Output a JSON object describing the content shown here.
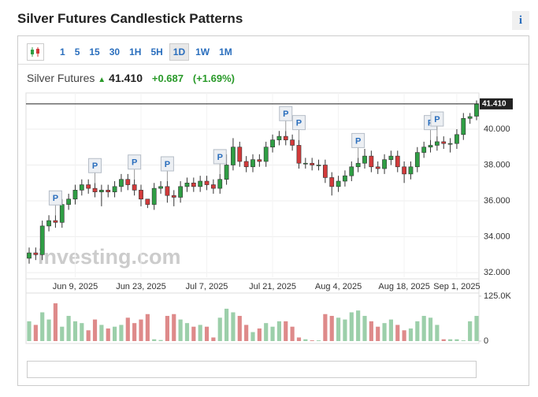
{
  "header": {
    "title": "Silver Futures Candlestick Patterns",
    "info": "i"
  },
  "toolbar": [
    "1",
    "5",
    "15",
    "30",
    "1H",
    "5H",
    "1D",
    "1W",
    "1M"
  ],
  "quote": {
    "name": "Silver Futures",
    "price": {
      "value": 41.41,
      "label": "41.410"
    },
    "change": {
      "value": 0.687,
      "label": "+0.687"
    },
    "change_pct": {
      "value": 1.69,
      "label": "(+1.69%)"
    }
  },
  "watermark": "investing.com",
  "chart_data": {
    "type": "candlestick",
    "categories": [
      null,
      null,
      null,
      null,
      null,
      null,
      null,
      "Jun 9, 2025",
      null,
      null,
      null,
      null,
      null,
      null,
      null,
      null,
      null,
      "Jun 23, 2025",
      null,
      null,
      null,
      null,
      null,
      null,
      null,
      null,
      null,
      "Jul 7, 2025",
      null,
      null,
      null,
      null,
      null,
      null,
      null,
      null,
      null,
      "Jul 21, 2025",
      null,
      null,
      null,
      null,
      null,
      null,
      null,
      null,
      null,
      "Aug 4, 2025",
      null,
      null,
      null,
      null,
      null,
      null,
      null,
      null,
      null,
      "Aug 18, 2025",
      null,
      null,
      null,
      null,
      null,
      null,
      null,
      "Sep 1, 2025",
      null,
      null,
      null
    ],
    "open": [
      32.8,
      33.1,
      33.0,
      34.6,
      34.9,
      34.8,
      35.8,
      36.1,
      36.6,
      36.9,
      36.7,
      36.5,
      36.6,
      36.5,
      36.8,
      37.2,
      36.9,
      36.6,
      36.1,
      35.8,
      36.7,
      36.8,
      36.3,
      36.2,
      36.8,
      37.0,
      36.8,
      37.1,
      36.9,
      36.7,
      37.2,
      38.0,
      39.0,
      38.2,
      37.9,
      38.3,
      38.2,
      39.0,
      39.4,
      39.6,
      39.4,
      39.1,
      38.1,
      38.1,
      38.0,
      38.0,
      37.3,
      36.8,
      37.1,
      37.4,
      37.9,
      38.1,
      38.5,
      37.9,
      37.8,
      38.3,
      38.5,
      37.9,
      37.5,
      37.9,
      38.7,
      39.0,
      39.1,
      39.3,
      39.2,
      39.2,
      39.7,
      40.6,
      40.723
    ],
    "high": [
      33.4,
      33.4,
      34.9,
      35.2,
      35.2,
      36.1,
      36.4,
      36.9,
      37.2,
      37.2,
      37.0,
      36.9,
      36.9,
      37.1,
      37.5,
      37.5,
      37.2,
      36.9,
      36.1,
      37.0,
      37.1,
      37.1,
      36.6,
      37.1,
      37.3,
      37.3,
      37.4,
      37.4,
      37.2,
      37.5,
      38.6,
      39.5,
      39.3,
      38.5,
      38.6,
      38.6,
      39.3,
      39.7,
      39.9,
      39.9,
      39.7,
      39.4,
      38.4,
      38.4,
      38.3,
      38.3,
      37.6,
      37.4,
      37.7,
      38.2,
      38.4,
      38.9,
      38.8,
      38.2,
      38.6,
      38.8,
      38.8,
      38.2,
      38.2,
      39.0,
      39.3,
      39.4,
      39.6,
      39.6,
      39.5,
      40.0,
      40.9,
      40.9,
      41.6
    ],
    "low": [
      32.5,
      32.7,
      32.7,
      34.3,
      34.5,
      34.5,
      35.5,
      35.8,
      36.3,
      36.4,
      36.2,
      35.7,
      36.2,
      36.2,
      36.5,
      36.6,
      36.3,
      35.7,
      35.6,
      35.5,
      36.4,
      35.9,
      35.7,
      35.9,
      36.5,
      36.5,
      36.5,
      36.6,
      36.4,
      36.4,
      36.9,
      37.7,
      37.9,
      37.6,
      37.6,
      37.9,
      37.9,
      38.7,
      39.1,
      39.1,
      38.8,
      37.8,
      37.8,
      37.7,
      37.7,
      37.0,
      36.3,
      36.5,
      36.8,
      37.1,
      37.6,
      37.8,
      37.6,
      37.5,
      37.5,
      38.0,
      37.6,
      37.0,
      37.2,
      37.6,
      38.4,
      38.7,
      38.8,
      38.9,
      38.7,
      38.9,
      39.4,
      40.3,
      40.5
    ],
    "close": [
      33.1,
      33.0,
      34.6,
      34.9,
      34.8,
      35.8,
      36.1,
      36.6,
      36.9,
      36.7,
      36.5,
      36.6,
      36.5,
      36.8,
      37.2,
      36.9,
      36.6,
      36.1,
      35.8,
      36.7,
      36.8,
      36.3,
      36.2,
      36.8,
      37.0,
      36.8,
      37.1,
      36.9,
      36.7,
      37.2,
      38.0,
      39.0,
      38.2,
      37.9,
      38.3,
      38.2,
      39.0,
      39.4,
      39.6,
      39.4,
      39.1,
      38.1,
      38.1,
      38.0,
      38.0,
      37.3,
      36.8,
      37.1,
      37.4,
      37.9,
      38.1,
      38.5,
      37.9,
      37.8,
      38.3,
      38.5,
      37.9,
      37.5,
      37.9,
      38.7,
      39.0,
      39.1,
      39.3,
      39.2,
      39.2,
      39.7,
      40.6,
      40.7,
      41.41
    ],
    "volume": [
      55,
      45,
      80,
      60,
      105,
      40,
      70,
      55,
      50,
      30,
      60,
      45,
      35,
      40,
      45,
      65,
      50,
      60,
      75,
      5,
      3,
      70,
      75,
      60,
      50,
      40,
      45,
      40,
      10,
      65,
      90,
      80,
      70,
      45,
      25,
      35,
      50,
      40,
      55,
      55,
      40,
      10,
      5,
      2,
      2,
      75,
      70,
      65,
      60,
      80,
      85,
      70,
      55,
      40,
      50,
      60,
      45,
      30,
      35,
      55,
      70,
      65,
      45,
      5,
      5,
      5,
      2,
      55,
      70
    ],
    "patterns": [
      {
        "index": 4,
        "label": "P"
      },
      {
        "index": 10,
        "label": "P"
      },
      {
        "index": 16,
        "label": "P"
      },
      {
        "index": 21,
        "label": "P"
      },
      {
        "index": 29,
        "label": "P"
      },
      {
        "index": 39,
        "label": "P"
      },
      {
        "index": 41,
        "label": "P"
      },
      {
        "index": 50,
        "label": "P"
      },
      {
        "index": 61,
        "label": "P"
      },
      {
        "index": 62,
        "label": "P"
      }
    ],
    "up_color": "#2f9e44",
    "down_color": "#d23a3a",
    "up_volume_color": "#9ccfaa",
    "down_volume_color": "#de8a8a",
    "ylim": [
      31.74,
      42.02
    ],
    "yticks": [
      {
        "value": 32,
        "label": "32.000"
      },
      {
        "value": 34,
        "label": "34.000"
      },
      {
        "value": 36,
        "label": "36.000"
      },
      {
        "value": 38,
        "label": "38.000"
      },
      {
        "value": 40,
        "label": "40.000"
      }
    ],
    "y2lim": [
      0,
      138
    ],
    "y2ticks": [
      0,
      {
        "value": 125,
        "label": "125.0K"
      }
    ],
    "grid": true
  }
}
